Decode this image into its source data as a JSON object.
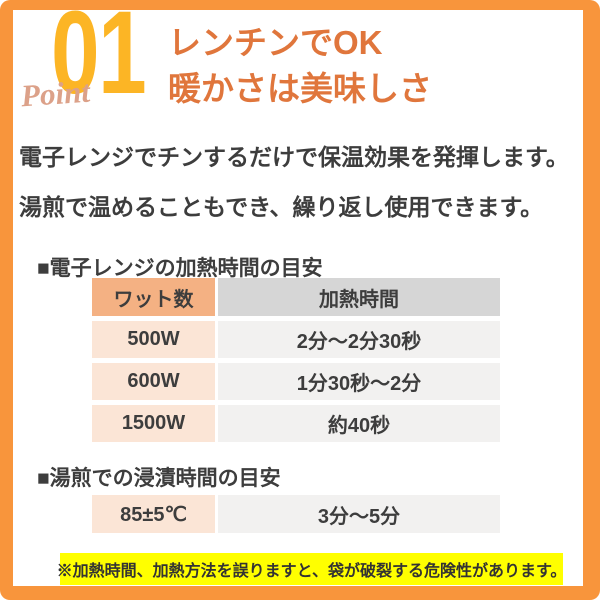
{
  "badge": {
    "number": "01",
    "label": "Point"
  },
  "headline": {
    "line1": "レンチンでOK",
    "line2": "暖かさは美味しさ"
  },
  "intro": {
    "line1": "電子レンジでチンするだけで保温効果を発揮します。",
    "line2": "湯煎で温めることもでき、繰り返し使用できます。"
  },
  "microwave_section": {
    "title": "■電子レンジの加熱時間の目安",
    "table": {
      "headers": [
        "ワット数",
        "加熱時間"
      ],
      "rows": [
        {
          "wattage": "500W",
          "time": "2分～2分30秒"
        },
        {
          "wattage": "600W",
          "time": "1分30秒～2分"
        },
        {
          "wattage": "1500W",
          "time": "約40秒"
        }
      ]
    }
  },
  "hot_water_section": {
    "title": "■湯煎での浸漬時間の目安",
    "table": {
      "rows": [
        {
          "temperature": "85±5℃",
          "time": "3分～5分"
        }
      ]
    }
  },
  "warning": {
    "text": "※加熱時間、加熱方法を誤りますと、袋が破裂する危険性があります。"
  },
  "colors": {
    "frame_orange": "#F8953C",
    "number_amber": "#FCB525",
    "point_salmon": "#DCA189",
    "headline_orange": "#E0763C",
    "text_dark": "#3D3D3D",
    "table_header_watt_bg": "#F4B183",
    "table_header_time_bg": "#D6D6D6",
    "table_cell_watt_bg": "#FBE5D6",
    "table_cell_time_bg": "#F2F1F0",
    "warning_highlight": "#FFFF00"
  }
}
